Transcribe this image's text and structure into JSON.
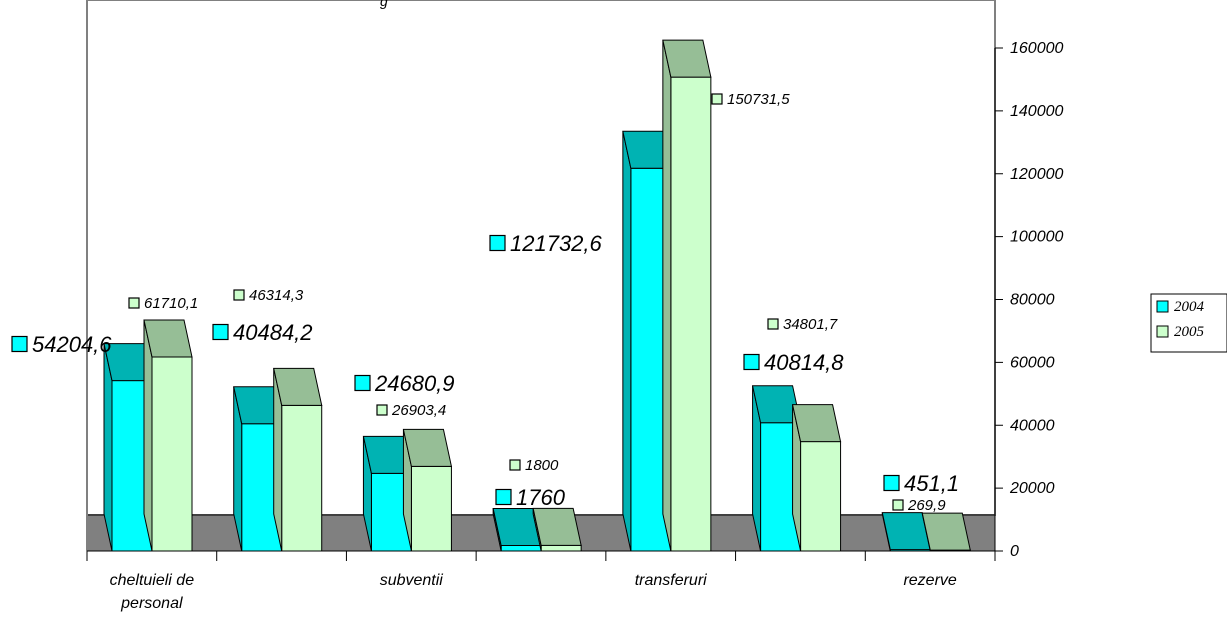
{
  "chart_data": {
    "type": "bar",
    "title": "g",
    "categories": [
      [
        "cheltuieli de",
        "personal"
      ],
      [
        ""
      ],
      [
        "subventii"
      ],
      [
        ""
      ],
      [
        "transferuri"
      ],
      [
        ""
      ],
      [
        "rezerve"
      ]
    ],
    "series": [
      {
        "name": "2004",
        "values": [
          54204.6,
          40484.2,
          24680.9,
          1760,
          121732.6,
          40814.8,
          451.1
        ],
        "labels": [
          "54204,6",
          "40484,2",
          "24680,9",
          "1760",
          "121732,6",
          "40814,8",
          "451,1"
        ],
        "color": "#00FFFF",
        "top_color": "#00B3B3"
      },
      {
        "name": "2005",
        "values": [
          61710.1,
          46314.3,
          26903.4,
          1800,
          150731.5,
          34801.7,
          269.9
        ],
        "labels": [
          "61710,1",
          "46314,3",
          "26903,4",
          "1800",
          "150731,5",
          "34801,7",
          "269,9"
        ],
        "color": "#CCFFCC",
        "top_color": "#96BE96"
      }
    ],
    "ylim": [
      0,
      160000
    ],
    "yticks": [
      "0",
      "20000",
      "40000",
      "60000",
      "80000",
      "100000",
      "120000",
      "140000",
      "160000"
    ],
    "y_axis_side": "right",
    "floor_color": "#808080",
    "legend": [
      "2004",
      "2005"
    ],
    "legend_position": "right",
    "grid": false
  }
}
